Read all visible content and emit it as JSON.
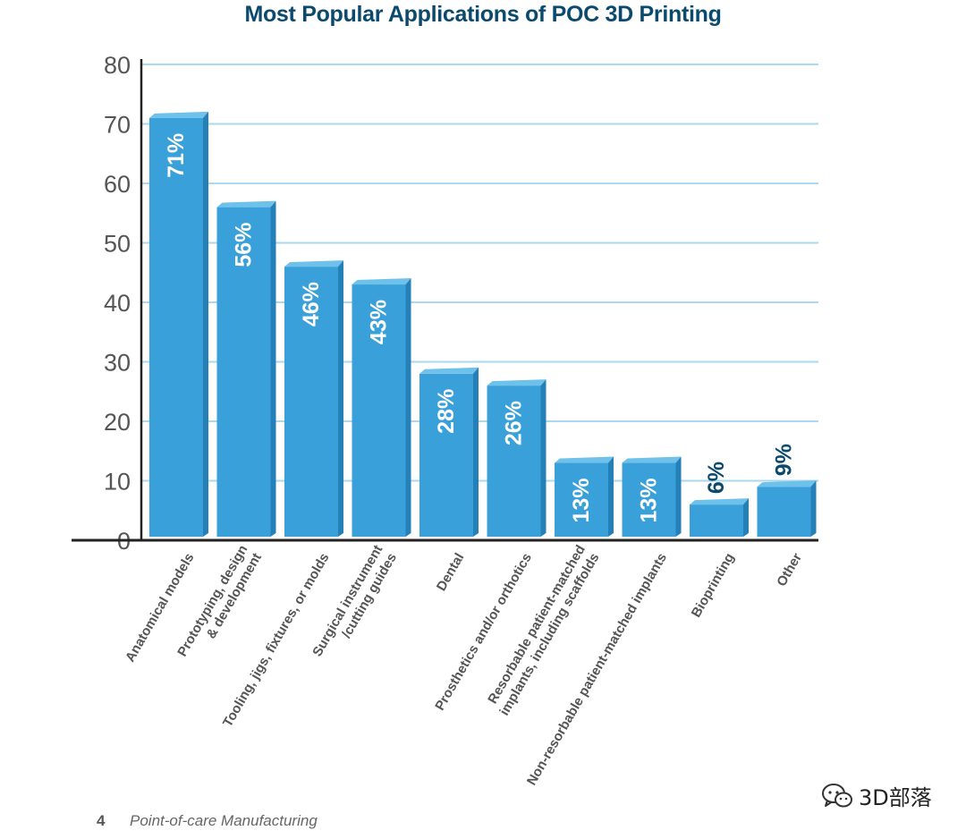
{
  "chart_data": {
    "type": "bar",
    "title": "Most Popular Applications of POC 3D Printing",
    "categories": [
      "Anatomical models",
      "Prototyping, design\n& development",
      "Tooling, jigs, fixtures, or molds",
      "Surgical instrument\n/cutting guides",
      "Dental",
      "Prosthetics and/or orthotics",
      "Resorbable patient-matched\nimplants, including scaffolds",
      "Non-resorbable patient-matched implants",
      "Bioprinting",
      "Other"
    ],
    "values": [
      71,
      56,
      46,
      43,
      28,
      26,
      13,
      13,
      6,
      9
    ],
    "data_labels": [
      "71%",
      "56%",
      "46%",
      "43%",
      "28%",
      "26%",
      "13%",
      "13%",
      "6%",
      "9%"
    ],
    "yticks": [
      "0",
      "10",
      "20",
      "30",
      "40",
      "50",
      "60",
      "70",
      "80"
    ],
    "ylim": [
      0,
      80
    ],
    "grid": true,
    "bar_color": "#3aa0d9",
    "bar_side_color": "#2580b8",
    "bar_top_color": "#6ec1ea",
    "grid_color": "#a9d8ef",
    "title_color": "#0b4a6e"
  },
  "footer": {
    "page_number": "4",
    "text": "Point-of-care Manufacturing"
  },
  "watermark": {
    "text": "3D部落",
    "icon": "wechat-icon"
  }
}
